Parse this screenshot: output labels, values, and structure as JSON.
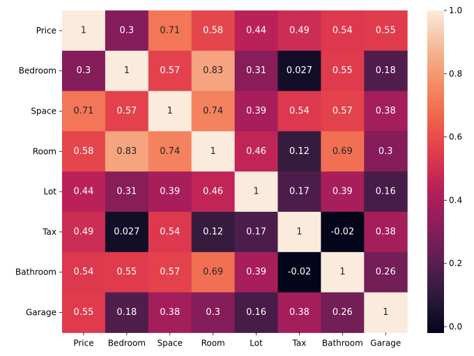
{
  "chart_data": {
    "type": "heatmap",
    "title": "",
    "xlabel": "",
    "ylabel": "",
    "rows": [
      "Price",
      "Bedroom",
      "Space",
      "Room",
      "Lot",
      "Tax",
      "Bathroom",
      "Garage"
    ],
    "columns": [
      "Price",
      "Bedroom",
      "Space",
      "Room",
      "Lot",
      "Tax",
      "Bathroom",
      "Garage"
    ],
    "values": [
      [
        1,
        0.3,
        0.71,
        0.58,
        0.44,
        0.49,
        0.54,
        0.55
      ],
      [
        0.3,
        1,
        0.57,
        0.83,
        0.31,
        0.027,
        0.55,
        0.18
      ],
      [
        0.71,
        0.57,
        1,
        0.74,
        0.39,
        0.54,
        0.57,
        0.38
      ],
      [
        0.58,
        0.83,
        0.74,
        1,
        0.46,
        0.12,
        0.69,
        0.3
      ],
      [
        0.44,
        0.31,
        0.39,
        0.46,
        1,
        0.17,
        0.39,
        0.16
      ],
      [
        0.49,
        0.027,
        0.54,
        0.12,
        0.17,
        1,
        -0.02,
        0.38
      ],
      [
        0.54,
        0.55,
        0.57,
        0.69,
        0.39,
        -0.02,
        1,
        0.26
      ],
      [
        0.55,
        0.18,
        0.38,
        0.3,
        0.16,
        0.38,
        0.26,
        1
      ]
    ],
    "value_labels": [
      [
        "1",
        "0.3",
        "0.71",
        "0.58",
        "0.44",
        "0.49",
        "0.54",
        "0.55"
      ],
      [
        "0.3",
        "1",
        "0.57",
        "0.83",
        "0.31",
        "0.027",
        "0.55",
        "0.18"
      ],
      [
        "0.71",
        "0.57",
        "1",
        "0.74",
        "0.39",
        "0.54",
        "0.57",
        "0.38"
      ],
      [
        "0.58",
        "0.83",
        "0.74",
        "1",
        "0.46",
        "0.12",
        "0.69",
        "0.3"
      ],
      [
        "0.44",
        "0.31",
        "0.39",
        "0.46",
        "1",
        "0.17",
        "0.39",
        "0.16"
      ],
      [
        "0.49",
        "0.027",
        "0.54",
        "0.12",
        "0.17",
        "1",
        "-0.02",
        "0.38"
      ],
      [
        "0.54",
        "0.55",
        "0.57",
        "0.69",
        "0.39",
        "-0.02",
        "1",
        "0.26"
      ],
      [
        "0.55",
        "0.18",
        "0.38",
        "0.3",
        "0.16",
        "0.38",
        "0.26",
        "1"
      ]
    ],
    "colorbar": {
      "range": [
        -0.02,
        1.0
      ],
      "ticks": [
        0.0,
        0.2,
        0.4,
        0.6,
        0.8,
        1.0
      ],
      "tick_labels": [
        "0.0",
        "0.2",
        "0.4",
        "0.6",
        "0.8",
        "1.0"
      ]
    },
    "colormap": "rocket",
    "colormap_stops": [
      "#03051a",
      "#2a1a3a",
      "#5c1e51",
      "#8c1d5b",
      "#b81f5a",
      "#df3a4d",
      "#f0634a",
      "#f58f67",
      "#f6ba99",
      "#faebdd"
    ],
    "grid": false,
    "legend": "colorbar-right"
  }
}
